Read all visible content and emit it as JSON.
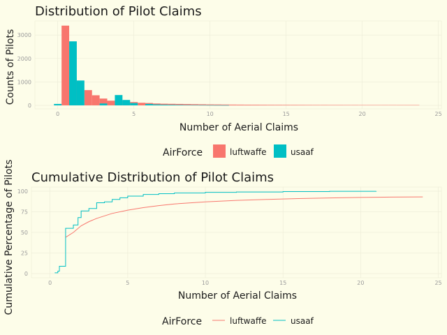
{
  "colors": {
    "background": "#fdfde9",
    "grid": "#ecebd6",
    "luftwaffe": "#f8766d",
    "usaaf": "#00bfc4"
  },
  "legend": {
    "title": "AirForce",
    "items": [
      "luftwaffe",
      "usaaf"
    ]
  },
  "chart_data": [
    {
      "type": "bar",
      "title": "Distribution of Pilot Claims",
      "xlabel": "Number of Aerial Claims",
      "ylabel": "Counts of Pilots",
      "xlim": [
        -1.5,
        25.2
      ],
      "ylim": [
        -150,
        3600
      ],
      "x_ticks": [
        0,
        5,
        10,
        15,
        20,
        25
      ],
      "y_ticks": [
        0,
        1000,
        2000,
        3000
      ],
      "grid": "minimal",
      "legend_position": "bottom",
      "bar_width": 0.5,
      "series": [
        {
          "name": "luftwaffe",
          "x": [
            0.5,
            1,
            1.5,
            2,
            2.5,
            3,
            3.5,
            4,
            4.5,
            5,
            5.5,
            6,
            6.5,
            7,
            7.5,
            8,
            8.5,
            9,
            9.5,
            10,
            10.5,
            11,
            11.5,
            12,
            12.5,
            13,
            13.5,
            14,
            14.5,
            15,
            15.5,
            16,
            16.5,
            17,
            17.5,
            18,
            18.5,
            19,
            19.5,
            20,
            20.5,
            21,
            21.5,
            22,
            22.5,
            23,
            23.5
          ],
          "values": [
            3400,
            1180,
            0,
            650,
            430,
            290,
            200,
            190,
            160,
            140,
            110,
            100,
            80,
            70,
            65,
            60,
            55,
            50,
            45,
            40,
            38,
            35,
            32,
            30,
            28,
            27,
            25,
            24,
            23,
            22,
            21,
            20,
            19,
            18,
            18,
            17,
            17,
            16,
            16,
            15,
            15,
            14,
            14,
            14,
            13,
            13,
            13
          ]
        },
        {
          "name": "usaaf",
          "x": [
            0,
            1,
            1.5,
            3,
            4,
            4.5,
            5,
            6,
            6.5,
            7,
            7.5,
            8,
            8.5,
            9,
            9.5,
            10,
            10.5,
            11
          ],
          "values": [
            60,
            2730,
            1060,
            80,
            440,
            230,
            100,
            60,
            40,
            30,
            25,
            20,
            15,
            12,
            10,
            8,
            6,
            5
          ]
        }
      ]
    },
    {
      "type": "line",
      "title": "Cumulative Distribution of Pilot Claims",
      "xlabel": "Number of Aerial Claims",
      "ylabel": "Cumulative Percentage of Pilots",
      "xlim": [
        -1.2,
        25.2
      ],
      "ylim": [
        -5,
        105
      ],
      "x_ticks": [
        0,
        5,
        10,
        15,
        20,
        25
      ],
      "y_ticks": [
        0,
        25,
        50,
        75,
        100
      ],
      "grid": "minimal",
      "legend_position": "bottom",
      "series": [
        {
          "name": "luftwaffe",
          "x": [
            1,
            1.5,
            2,
            2.5,
            3,
            4,
            5,
            6,
            7,
            8,
            10,
            12,
            14,
            16,
            18,
            20,
            22,
            24
          ],
          "y": [
            44,
            50,
            58,
            63,
            67,
            73,
            77,
            80,
            82.5,
            84.5,
            87,
            88.8,
            90,
            91,
            91.8,
            92.4,
            92.8,
            93
          ]
        },
        {
          "name": "usaaf",
          "x": [
            0.3,
            0.5,
            0.6,
            0.8,
            1,
            1.5,
            1.8,
            2,
            2.5,
            3,
            3.5,
            4,
            4.5,
            5,
            6,
            7,
            8,
            10,
            12,
            15,
            18,
            21
          ],
          "y": [
            1,
            3,
            9,
            9,
            55,
            59,
            68,
            76,
            79,
            86,
            87,
            90,
            92,
            94,
            96,
            97,
            97.8,
            98.5,
            99,
            99.5,
            99.8,
            100
          ]
        }
      ]
    }
  ]
}
